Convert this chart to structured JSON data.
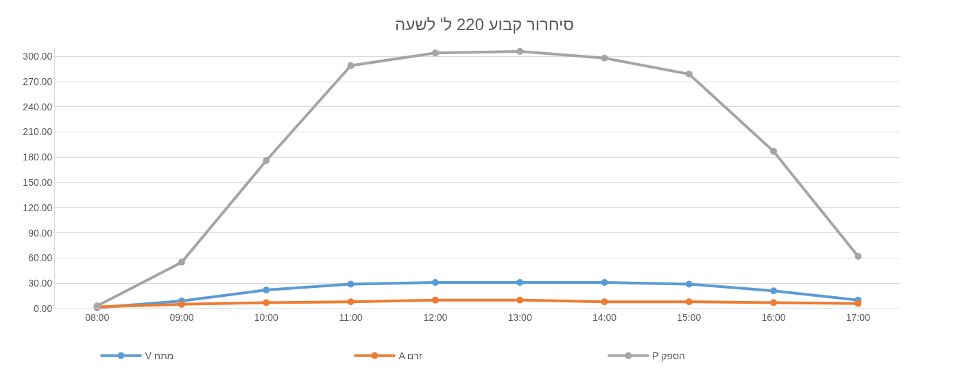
{
  "chart_data": {
    "type": "line",
    "title": "סיחרור קבוע 220 ל' לשעה",
    "categories": [
      "08:00",
      "09:00",
      "10:00",
      "11:00",
      "12:00",
      "13:00",
      "14:00",
      "15:00",
      "16:00",
      "17:00"
    ],
    "series": [
      {
        "name": "V מתח",
        "color": "#5b9bd5",
        "values": [
          1,
          9,
          22,
          29,
          31,
          31,
          31,
          29,
          21,
          10
        ]
      },
      {
        "name": "A זרם",
        "color": "#ed7d31",
        "values": [
          2,
          5,
          7,
          8,
          10,
          10,
          8,
          8,
          7,
          6
        ]
      },
      {
        "name": "P הספק",
        "color": "#a5a5a5",
        "values": [
          3,
          55,
          176,
          289,
          304,
          306,
          298,
          279,
          187,
          62
        ]
      }
    ],
    "ylim": [
      0,
      310
    ],
    "yticks": [
      {
        "value": 0,
        "label": "0.00"
      },
      {
        "value": 30,
        "label": "30.00"
      },
      {
        "value": 60,
        "label": "60.00"
      },
      {
        "value": 90,
        "label": "90.00"
      },
      {
        "value": 120,
        "label": "120.00"
      },
      {
        "value": 150,
        "label": "150.00"
      },
      {
        "value": 180,
        "label": "180.00"
      },
      {
        "value": 210,
        "label": "210.00"
      },
      {
        "value": 240,
        "label": "240.00"
      },
      {
        "value": 270,
        "label": "270.00"
      },
      {
        "value": 300,
        "label": "300.00"
      }
    ],
    "grid": "y",
    "legend": "bottom",
    "marker": "circle",
    "line_style": "solid"
  }
}
